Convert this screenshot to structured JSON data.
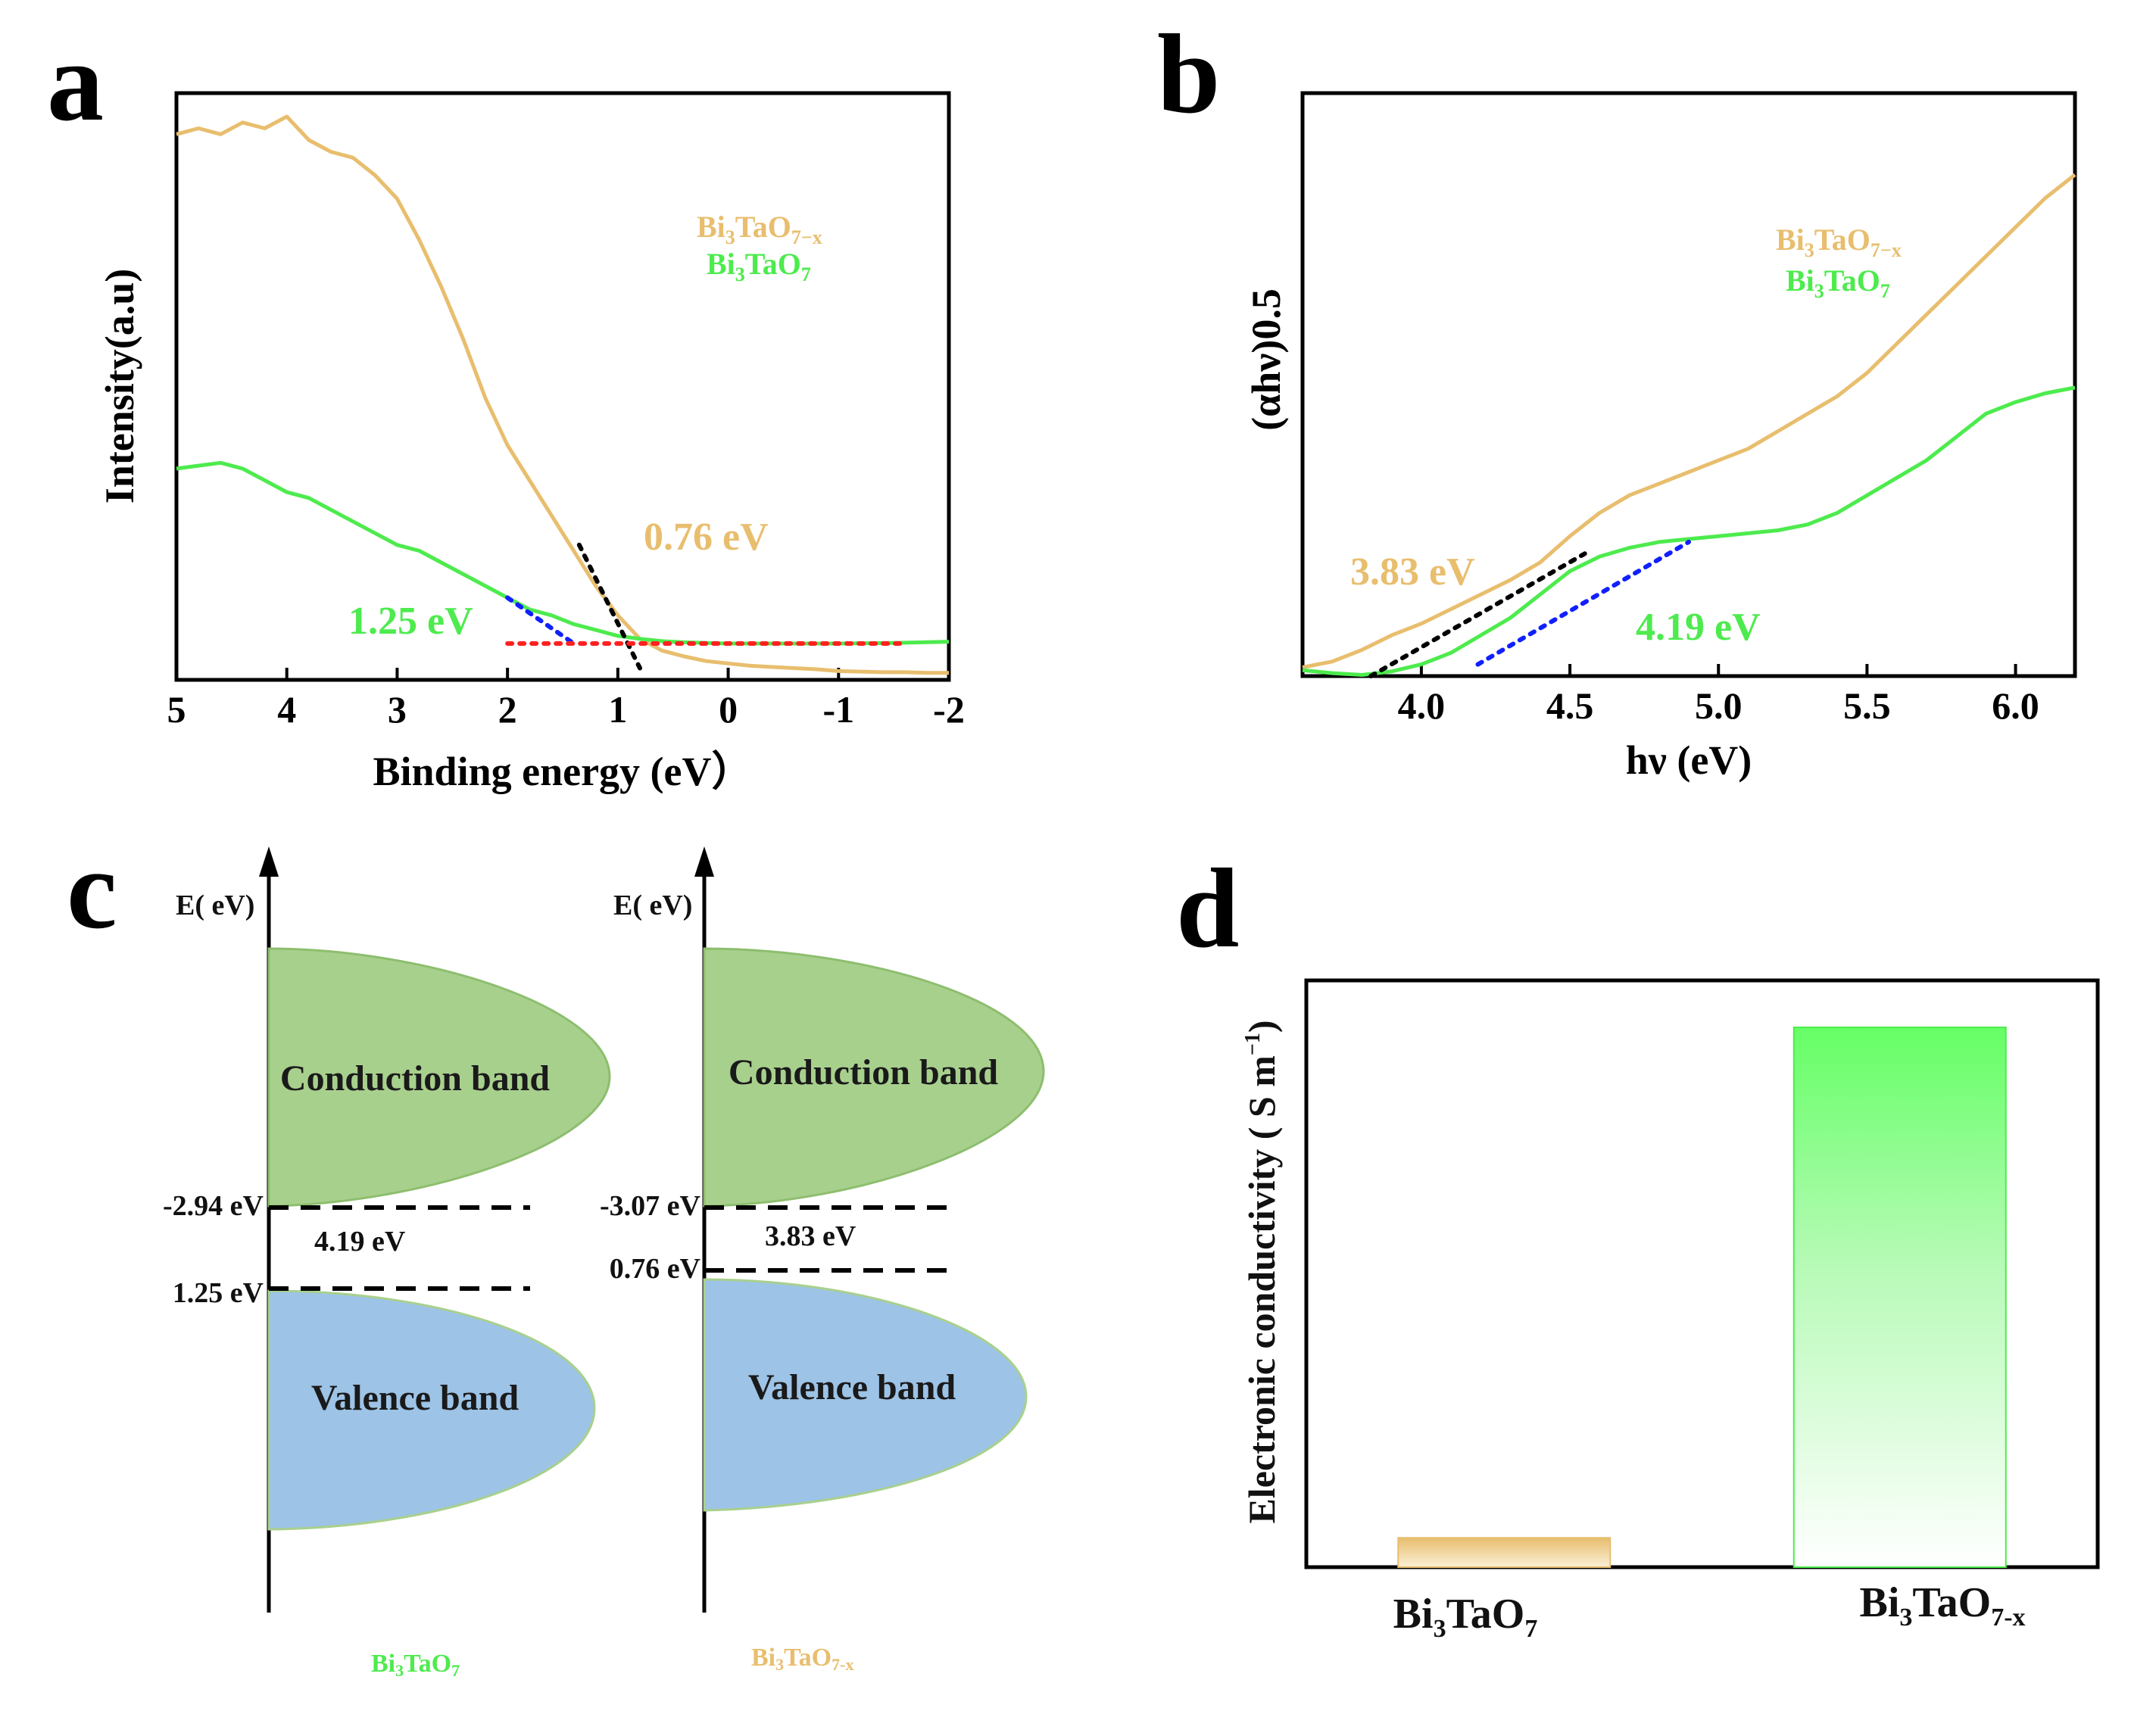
{
  "panels": {
    "a": "a",
    "b": "b",
    "c": "c",
    "d": "d"
  },
  "colors": {
    "orange": "#E8BE6E",
    "green": "#4DEB4D",
    "red": "#FF2020",
    "blue": "#1020FF",
    "black": "#000000",
    "cb_fill": "#A8D08D",
    "vb_fill": "#9DC3E6"
  },
  "chart_data": [
    {
      "panel": "a",
      "type": "line",
      "xlabel": "Binding energy (eV）",
      "ylabel": "Intensity(a.u)",
      "xlim": [
        5,
        -2
      ],
      "ylim": [
        0,
        100
      ],
      "xticks": [
        "5",
        "4",
        "3",
        "2",
        "1",
        "0",
        "-1",
        "-2"
      ],
      "legend": [
        {
          "main": "Bi",
          "sub1": "3",
          "mid": "TaO",
          "sub2": "7−x",
          "color": "#E8BE6E"
        },
        {
          "main": "Bi",
          "sub1": "3",
          "mid": "TaO",
          "sub2": "7",
          "color": "#4DEB4D"
        }
      ],
      "series": [
        {
          "name": "Bi3TaO7-x",
          "color": "#E8BE6E",
          "x": [
            5.0,
            4.8,
            4.6,
            4.4,
            4.2,
            4.0,
            3.8,
            3.6,
            3.4,
            3.2,
            3.0,
            2.8,
            2.6,
            2.4,
            2.2,
            2.0,
            1.8,
            1.6,
            1.4,
            1.2,
            1.0,
            0.8,
            0.6,
            0.4,
            0.2,
            0.0,
            -0.2,
            -0.4,
            -0.6,
            -0.8,
            -1.0,
            -1.2,
            -1.4,
            -1.6,
            -1.8,
            -2.0
          ],
          "y": [
            93,
            94,
            93,
            95,
            94,
            96,
            92,
            90,
            89,
            86,
            82,
            75,
            67,
            58,
            48,
            40,
            34,
            28,
            22,
            16,
            11,
            7,
            5,
            4,
            3.2,
            2.8,
            2.4,
            2.2,
            2.0,
            1.8,
            1.5,
            1.4,
            1.3,
            1.3,
            1.2,
            1.2
          ]
        },
        {
          "name": "Bi3TaO7",
          "color": "#4DEB4D",
          "x": [
            5.0,
            4.8,
            4.6,
            4.4,
            4.2,
            4.0,
            3.8,
            3.6,
            3.4,
            3.2,
            3.0,
            2.8,
            2.6,
            2.4,
            2.2,
            2.0,
            1.8,
            1.6,
            1.4,
            1.2,
            1.0,
            0.8,
            0.6,
            0.4,
            0.2,
            0.0,
            -0.5,
            -1.0,
            -1.5,
            -2.0
          ],
          "y": [
            36,
            36.5,
            37,
            36,
            34,
            32,
            31,
            29,
            27,
            25,
            23,
            22,
            20,
            18,
            16,
            14,
            12,
            11,
            9.5,
            8.5,
            7.5,
            7,
            6.6,
            6.4,
            6.3,
            6.2,
            6.2,
            6.2,
            6.3,
            6.5
          ]
        }
      ],
      "fits": [
        {
          "color": "#000000",
          "x": [
            1.35,
            0.8
          ],
          "y": [
            23,
            2
          ]
        },
        {
          "color": "#1020FF",
          "x": [
            2.0,
            1.4
          ],
          "y": [
            14,
            6.2
          ]
        },
        {
          "color": "#FF2020",
          "x": [
            2.0,
            -1.6
          ],
          "y": [
            6.2,
            6.2
          ]
        }
      ],
      "annotations": [
        {
          "text": "0.76 eV",
          "color": "#E8BE6E"
        },
        {
          "text": "1.25 eV",
          "color": "#4DEB4D"
        }
      ]
    },
    {
      "panel": "b",
      "type": "line",
      "xlabel": "hν (eV)",
      "ylabel": "(αhν)0.5",
      "xlim": [
        3.6,
        6.2
      ],
      "ylim": [
        0,
        100
      ],
      "xticks": [
        "4.0",
        "4.5",
        "5.0",
        "5.5",
        "6.0"
      ],
      "xtick_values": [
        4.0,
        4.5,
        5.0,
        5.5,
        6.0
      ],
      "legend": [
        {
          "main": "Bi",
          "sub1": "3",
          "mid": "TaO",
          "sub2": "7−x",
          "color": "#E8BE6E"
        },
        {
          "main": "Bi",
          "sub1": "3",
          "mid": "TaO",
          "sub2": "7",
          "color": "#4DEB4D"
        }
      ],
      "series": [
        {
          "name": "Bi3TaO7-x",
          "color": "#E8BE6E",
          "x": [
            3.6,
            3.7,
            3.8,
            3.9,
            4.0,
            4.1,
            4.2,
            4.3,
            4.4,
            4.5,
            4.6,
            4.7,
            4.8,
            4.9,
            5.0,
            5.1,
            5.2,
            5.3,
            5.4,
            5.5,
            5.6,
            5.7,
            5.8,
            5.9,
            6.0,
            6.1,
            6.2
          ],
          "y": [
            1.5,
            2.5,
            4.5,
            7,
            9,
            11.5,
            14,
            16.5,
            19.5,
            24,
            28,
            31,
            33,
            35,
            37,
            39,
            42,
            45,
            48,
            52,
            57,
            62,
            67,
            72,
            77,
            82,
            86
          ]
        },
        {
          "name": "Bi3TaO7",
          "color": "#4DEB4D",
          "x": [
            3.6,
            3.7,
            3.8,
            3.9,
            4.0,
            4.1,
            4.2,
            4.3,
            4.4,
            4.5,
            4.6,
            4.7,
            4.8,
            4.9,
            5.0,
            5.1,
            5.2,
            5.3,
            5.4,
            5.5,
            5.6,
            5.7,
            5.8,
            5.9,
            6.0,
            6.1,
            6.2
          ],
          "y": [
            1,
            0.5,
            0.2,
            0.8,
            2,
            4,
            7,
            10,
            14,
            18,
            20.5,
            22,
            23,
            23.5,
            24,
            24.5,
            25,
            26,
            28,
            31,
            34,
            37,
            41,
            45,
            47,
            48.5,
            49.5
          ]
        }
      ],
      "fits": [
        {
          "color": "#000000",
          "x": [
            3.83,
            4.55
          ],
          "y": [
            0,
            21
          ]
        },
        {
          "color": "#1020FF",
          "x": [
            4.19,
            4.9
          ],
          "y": [
            2,
            23
          ]
        }
      ],
      "annotations": [
        {
          "text": "3.83 eV",
          "color": "#E8BE6E"
        },
        {
          "text": "4.19 eV",
          "color": "#4DEB4D"
        }
      ]
    },
    {
      "panel": "d",
      "type": "bar",
      "ylabel_text": "Electronic conductivity ( S m",
      "ylabel_sup": "−1",
      "ylabel_close": ")",
      "categories": [
        {
          "main": "Bi",
          "sub1": "3",
          "mid": "TaO",
          "sub2": "7"
        },
        {
          "main": "Bi",
          "sub1": "3",
          "mid": "TaO",
          "sub2": "7-x"
        }
      ],
      "values": [
        5,
        92
      ],
      "ylim": [
        0,
        100
      ],
      "bar_colors": [
        "#E8BE6E",
        "#4DEB4D"
      ]
    }
  ],
  "band_diagram": {
    "axis_label": "E( eV)",
    "conduction_label": "Conduction band",
    "valence_label": "Valence band",
    "materials": [
      {
        "name_main": "Bi",
        "name_sub1": "3",
        "name_mid": "TaO",
        "name_sub2": "7",
        "name_color": "#4DEB4D",
        "cb_level": "-2.94 eV",
        "vb_level": "1.25 eV",
        "gap": "4.19 eV"
      },
      {
        "name_main": "Bi",
        "name_sub1": "3",
        "name_mid": "TaO",
        "name_sub2": "7-x",
        "name_color": "#E8BE6E",
        "cb_level": "-3.07 eV",
        "vb_level": "0.76 eV",
        "gap": "3.83 eV"
      }
    ]
  }
}
